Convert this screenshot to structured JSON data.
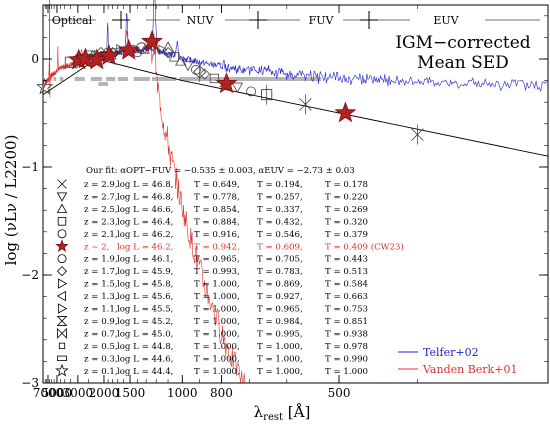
{
  "chart_data": {
    "type": "line",
    "title": "IGM−corrected Mean SED",
    "xlabel": "λrest [Å]",
    "ylabel": "log (νLν / L2200)",
    "x_scale": "reciprocal (frequency)",
    "xlim": [
      9000,
      300
    ],
    "ylim": [
      -3,
      0.5
    ],
    "x_ticks": [
      7000,
      5000,
      3000,
      2000,
      1500,
      1000,
      800,
      500
    ],
    "x_tick_labels": [
      "7000",
      "5000",
      "3000",
      "2000",
      "1500",
      "1000",
      "800",
      "500"
    ],
    "y_ticks": [
      0,
      -1,
      -2,
      -3
    ],
    "y_tick_labels": [
      "0",
      "−1",
      "−2",
      "−3"
    ],
    "band_labels": [
      "Optical",
      "NUV",
      "FUV",
      "EUV"
    ],
    "fit_text": "Our fit: αOPT−FUV = −0.535 ± 0.003, αEUV = −2.73 ± 0.03",
    "fit_line": {
      "x": [
        9000,
        2200,
        1000,
        300
      ],
      "y": [
        -0.33,
        0.0,
        -0.2,
        -0.9
      ]
    },
    "series": [
      {
        "name": "Telfer+02",
        "color": "#2222cc"
      },
      {
        "name": "Vanden Berk+01",
        "color": "#e03030"
      }
    ],
    "red_stars": {
      "x": [
        2950,
        2620,
        2200,
        1880,
        1520,
        1240,
        780,
        490
      ],
      "y": [
        -0.01,
        0.0,
        -0.01,
        0.03,
        0.08,
        0.16,
        -0.23,
        -0.5
      ]
    },
    "open_points": {
      "x": [
        8200,
        3500,
        2500,
        1800,
        1350,
        1100,
        900,
        650,
        560,
        400
      ],
      "y": [
        -0.26,
        -0.03,
        -0.01,
        0.05,
        0.1,
        0.1,
        -0.12,
        -0.33,
        -0.42,
        -0.7
      ]
    },
    "legend_rows": [
      {
        "marker": "cross",
        "z": "z = 2.9,",
        "logL": "log L = 46.8,",
        "Ta": "T = 0.649,",
        "Tn": "T = 0.194,",
        "Tf": "T = 0.178",
        "color": "#000000"
      },
      {
        "marker": "triangle-down",
        "z": "z = 2.7,",
        "logL": "log L = 46.8,",
        "Ta": "T = 0.778,",
        "Tn": "T = 0.257,",
        "Tf": "T = 0.220",
        "color": "#000000"
      },
      {
        "marker": "triangle-up",
        "z": "z = 2.5,",
        "logL": "log L = 46.6,",
        "Ta": "T = 0.854,",
        "Tn": "T = 0.337,",
        "Tf": "T = 0.269",
        "color": "#000000"
      },
      {
        "marker": "square",
        "z": "z = 2.3,",
        "logL": "log L = 46.4,",
        "Ta": "T = 0.884,",
        "Tn": "T = 0.432,",
        "Tf": "T = 0.320",
        "color": "#000000"
      },
      {
        "marker": "circle",
        "z": "z = 2.1,",
        "logL": "log L = 46.2,",
        "Ta": "T = 0.916,",
        "Tn": "T = 0.546,",
        "Tf": "T = 0.379",
        "color": "#000000"
      },
      {
        "marker": "star-red",
        "z": "z ~ 2,",
        "logL": "log L = 46.2,",
        "Ta": "T = 0.942,",
        "Tn": "T = 0.609,",
        "Tf": "T = 0.409 (CW23)",
        "color": "#e03030"
      },
      {
        "marker": "circle",
        "z": "z = 1.9,",
        "logL": "log L = 46.1,",
        "Ta": "T = 0.965,",
        "Tn": "T = 0.705,",
        "Tf": "T = 0.443",
        "color": "#000000"
      },
      {
        "marker": "diamond",
        "z": "z = 1.7,",
        "logL": "log L = 45.9,",
        "Ta": "T = 0.993,",
        "Tn": "T = 0.783,",
        "Tf": "T = 0.513",
        "color": "#000000"
      },
      {
        "marker": "triangle-right",
        "z": "z = 1.5,",
        "logL": "log L = 45.8,",
        "Ta": "T = 1.000,",
        "Tn": "T = 0.869,",
        "Tf": "T = 0.584",
        "color": "#000000"
      },
      {
        "marker": "triangle-left",
        "z": "z = 1.3,",
        "logL": "log L = 45.6,",
        "Ta": "T = 1.000,",
        "Tn": "T = 0.927,",
        "Tf": "T = 0.663",
        "color": "#000000"
      },
      {
        "marker": "triangle-right",
        "z": "z = 1.1,",
        "logL": "log L = 45.5,",
        "Ta": "T = 1.000,",
        "Tn": "T = 0.965,",
        "Tf": "T = 0.753",
        "color": "#000000"
      },
      {
        "marker": "hourglass",
        "z": "z = 0.9,",
        "logL": "log L = 45.2,",
        "Ta": "T = 1.000,",
        "Tn": "T = 0.984,",
        "Tf": "T = 0.851",
        "color": "#000000"
      },
      {
        "marker": "bowtie",
        "z": "z = 0.7,",
        "logL": "log L = 45.0,",
        "Ta": "T = 1.000,",
        "Tn": "T = 0.995,",
        "Tf": "T = 0.938",
        "color": "#000000"
      },
      {
        "marker": "box-small",
        "z": "z = 0.5,",
        "logL": "log L = 44.8,",
        "Ta": "T = 1.000,",
        "Tn": "T = 1.000,",
        "Tf": "T = 0.978",
        "color": "#000000"
      },
      {
        "marker": "rect",
        "z": "z = 0.3,",
        "logL": "log L = 44.6,",
        "Ta": "T = 1.000,",
        "Tn": "T = 1.000,",
        "Tf": "T = 0.990",
        "color": "#000000"
      },
      {
        "marker": "star-open",
        "z": "z = 0.1,",
        "logL": "log L = 44.4,",
        "Ta": "T = 1.000,",
        "Tn": "T = 1.000,",
        "Tf": "T = 1.000",
        "color": "#000000"
      }
    ]
  }
}
